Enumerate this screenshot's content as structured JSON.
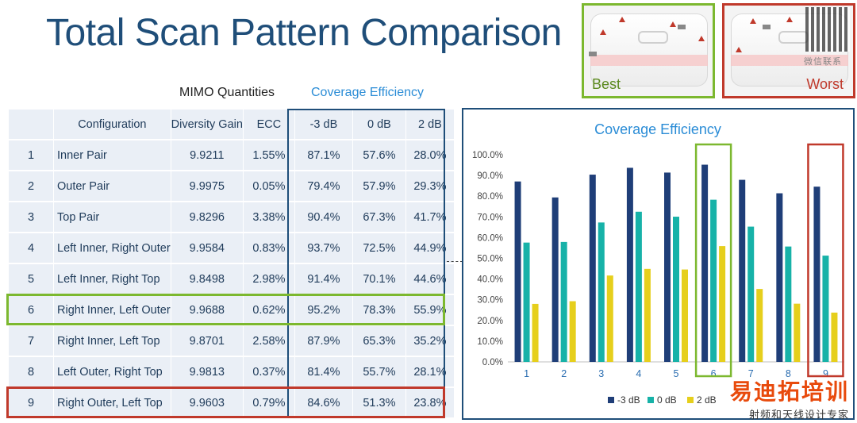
{
  "title": "Total Scan Pattern Comparison",
  "images": {
    "best_label": "Best",
    "worst_label": "Worst",
    "qr_caption": "微信联系"
  },
  "table": {
    "group_headers": {
      "mimo": "MIMO Quantities",
      "coverage": "Coverage Efficiency"
    },
    "columns": [
      "",
      "Configuration",
      "Diversity Gain",
      "ECC",
      "-3 dB",
      "0 dB",
      "2 dB"
    ],
    "rows": [
      {
        "num": "1",
        "config": "Inner Pair",
        "diversity_gain": "9.9211",
        "ecc": "1.55%",
        "m3db": "87.1%",
        "zerodb": "57.6%",
        "twodb": "28.0%"
      },
      {
        "num": "2",
        "config": "Outer Pair",
        "diversity_gain": "9.9975",
        "ecc": "0.05%",
        "m3db": "79.4%",
        "zerodb": "57.9%",
        "twodb": "29.3%"
      },
      {
        "num": "3",
        "config": "Top Pair",
        "diversity_gain": "9.8296",
        "ecc": "3.38%",
        "m3db": "90.4%",
        "zerodb": "67.3%",
        "twodb": "41.7%"
      },
      {
        "num": "4",
        "config": "Left Inner, Right Outer",
        "diversity_gain": "9.9584",
        "ecc": "0.83%",
        "m3db": "93.7%",
        "zerodb": "72.5%",
        "twodb": "44.9%"
      },
      {
        "num": "5",
        "config": "Left Inner, Right Top",
        "diversity_gain": "9.8498",
        "ecc": "2.98%",
        "m3db": "91.4%",
        "zerodb": "70.1%",
        "twodb": "44.6%"
      },
      {
        "num": "6",
        "config": "Right Inner, Left Outer",
        "diversity_gain": "9.9688",
        "ecc": "0.62%",
        "m3db": "95.2%",
        "zerodb": "78.3%",
        "twodb": "55.9%"
      },
      {
        "num": "7",
        "config": "Right Inner, Left Top",
        "diversity_gain": "9.8701",
        "ecc": "2.58%",
        "m3db": "87.9%",
        "zerodb": "65.3%",
        "twodb": "35.2%"
      },
      {
        "num": "8",
        "config": "Left Outer, Right Top",
        "diversity_gain": "9.9813",
        "ecc": "0.37%",
        "m3db": "81.4%",
        "zerodb": "55.7%",
        "twodb": "28.1%"
      },
      {
        "num": "9",
        "config": "Right Outer, Left Top",
        "diversity_gain": "9.9603",
        "ecc": "0.79%",
        "m3db": "84.6%",
        "zerodb": "51.3%",
        "twodb": "23.8%"
      }
    ]
  },
  "watermark": {
    "big": "易迪拓培训",
    "small": "射频和天线设计专家"
  },
  "chart_data": {
    "type": "bar",
    "title": "Coverage Efficiency",
    "categories": [
      "1",
      "2",
      "3",
      "4",
      "5",
      "6",
      "7",
      "8",
      "9"
    ],
    "series": [
      {
        "name": "-3 dB",
        "color": "#1f3e78",
        "values": [
          87.1,
          79.4,
          90.4,
          93.7,
          91.4,
          95.2,
          87.9,
          81.4,
          84.6
        ]
      },
      {
        "name": "0 dB",
        "color": "#17b2a8",
        "values": [
          57.6,
          57.9,
          67.3,
          72.5,
          70.1,
          78.3,
          65.3,
          55.7,
          51.3
        ]
      },
      {
        "name": "2 dB",
        "color": "#e6cf1c",
        "values": [
          28.0,
          29.3,
          41.7,
          44.9,
          44.6,
          55.9,
          35.2,
          28.1,
          23.8
        ]
      }
    ],
    "y_ticks": [
      "0.0%",
      "10.0%",
      "20.0%",
      "30.0%",
      "40.0%",
      "50.0%",
      "60.0%",
      "70.0%",
      "80.0%",
      "90.0%",
      "100.0%"
    ],
    "ylim": [
      0,
      100
    ],
    "grid": false,
    "legend_position": "bottom",
    "highlight": {
      "best_category": "6",
      "best_color": "#7cb82f",
      "worst_category": "9",
      "worst_color": "#c0392b"
    }
  }
}
